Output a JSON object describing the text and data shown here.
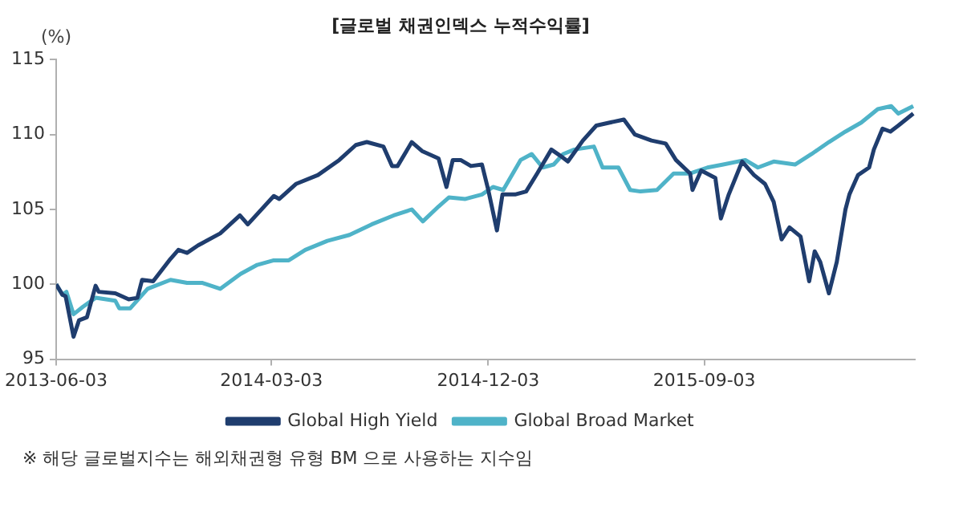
{
  "chart_data": {
    "type": "line",
    "title": "[글로벌 채권인덱스 누적수익률]",
    "ylabel": "(%)",
    "xlim": [
      "2013-06-03",
      "2016-05-27"
    ],
    "xticks": [
      "2013-06-03",
      "2014-03-03",
      "2014-12-03",
      "2015-09-03"
    ],
    "ylim": [
      95,
      115
    ],
    "yticks": [
      95,
      100,
      105,
      110,
      115
    ],
    "grid": false,
    "legend": "bottom",
    "marker": "none",
    "line_style": "solid",
    "annotations": [
      "※ 해당 글로벌지수는 해외채권형 유형 BM 으로 사용하는 지수임"
    ],
    "series": [
      {
        "name": "Global High Yield",
        "color": "#1f3d6e",
        "x": [
          "2013-06-03",
          "2013-06-11",
          "2013-06-15",
          "2013-06-25",
          "2013-07-02",
          "2013-07-12",
          "2013-07-23",
          "2013-07-27",
          "2013-08-17",
          "2013-09-03",
          "2013-09-14",
          "2013-09-20",
          "2013-10-04",
          "2013-10-26",
          "2013-11-05",
          "2013-11-16",
          "2013-11-30",
          "2013-12-28",
          "2014-01-22",
          "2014-02-01",
          "2014-03-06",
          "2014-03-13",
          "2014-04-03",
          "2014-05-01",
          "2014-05-28",
          "2014-06-18",
          "2014-07-02",
          "2014-07-23",
          "2014-08-03",
          "2014-08-10",
          "2014-08-28",
          "2014-09-10",
          "2014-10-01",
          "2014-10-11",
          "2014-10-19",
          "2014-10-29",
          "2014-11-11",
          "2014-11-25",
          "2014-12-03",
          "2014-12-14",
          "2014-12-21",
          "2015-01-06",
          "2015-01-20",
          "2015-02-03",
          "2015-02-21",
          "2015-03-04",
          "2015-03-14",
          "2015-04-02",
          "2015-04-19",
          "2015-05-06",
          "2015-05-24",
          "2015-06-07",
          "2015-06-28",
          "2015-07-16",
          "2015-07-29",
          "2015-08-16",
          "2015-08-19",
          "2015-08-30",
          "2015-09-17",
          "2015-09-24",
          "2015-10-04",
          "2015-10-21",
          "2015-11-05",
          "2015-11-19",
          "2015-11-30",
          "2015-12-10",
          "2015-12-20",
          "2016-01-03",
          "2016-01-14",
          "2016-01-21",
          "2016-01-28",
          "2016-02-08",
          "2016-02-18",
          "2016-02-29",
          "2016-03-05",
          "2016-03-16",
          "2016-03-30",
          "2016-04-05",
          "2016-04-16",
          "2016-04-26",
          "2016-05-06",
          "2016-05-25"
        ],
        "values": [
          100.0,
          99.3,
          99.2,
          96.5,
          97.6,
          97.8,
          99.9,
          99.5,
          99.4,
          99.0,
          99.1,
          100.3,
          100.2,
          101.7,
          102.3,
          102.1,
          102.6,
          103.4,
          104.6,
          104.0,
          105.9,
          105.7,
          106.7,
          107.3,
          108.3,
          109.3,
          109.5,
          109.2,
          107.9,
          107.9,
          109.5,
          108.9,
          108.4,
          106.5,
          108.3,
          108.3,
          107.9,
          108.0,
          106.3,
          103.6,
          106.0,
          106.0,
          106.2,
          107.4,
          109.0,
          108.6,
          108.2,
          109.6,
          110.6,
          110.8,
          111.0,
          110.0,
          109.6,
          109.4,
          108.3,
          107.4,
          106.3,
          107.6,
          107.1,
          104.4,
          106.0,
          108.2,
          107.3,
          106.7,
          105.5,
          103.0,
          103.8,
          103.2,
          100.2,
          102.2,
          101.5,
          99.4,
          101.5,
          105.0,
          106.0,
          107.3,
          107.8,
          109.0,
          110.4,
          110.2,
          110.6,
          111.4
        ]
      },
      {
        "name": "Global Broad Market",
        "color": "#4fb3c8",
        "x": [
          "2013-06-03",
          "2013-06-11",
          "2013-06-16",
          "2013-06-25",
          "2013-07-07",
          "2013-07-23",
          "2013-08-17",
          "2013-08-22",
          "2013-09-05",
          "2013-09-27",
          "2013-10-26",
          "2013-11-16",
          "2013-12-05",
          "2013-12-28",
          "2014-01-23",
          "2014-02-13",
          "2014-03-06",
          "2014-03-25",
          "2014-04-15",
          "2014-05-13",
          "2014-06-10",
          "2014-07-08",
          "2014-08-05",
          "2014-08-28",
          "2014-09-11",
          "2014-10-01",
          "2014-10-14",
          "2014-11-04",
          "2014-11-25",
          "2014-12-09",
          "2014-12-22",
          "2015-01-13",
          "2015-01-27",
          "2015-02-10",
          "2015-02-24",
          "2015-03-08",
          "2015-03-22",
          "2015-04-16",
          "2015-04-27",
          "2015-05-17",
          "2015-06-01",
          "2015-06-14",
          "2015-07-05",
          "2015-07-26",
          "2015-08-16",
          "2015-09-07",
          "2015-09-27",
          "2015-10-25",
          "2015-11-10",
          "2015-11-30",
          "2015-12-27",
          "2016-01-17",
          "2016-02-08",
          "2016-02-29",
          "2016-03-20",
          "2016-04-10",
          "2016-04-27",
          "2016-05-06",
          "2016-05-25"
        ],
        "values": [
          100.0,
          99.3,
          99.5,
          98.0,
          98.5,
          99.1,
          98.9,
          98.4,
          98.4,
          99.7,
          100.3,
          100.1,
          100.1,
          99.7,
          100.7,
          101.3,
          101.6,
          101.6,
          102.3,
          102.9,
          103.3,
          104.0,
          104.6,
          105.0,
          104.2,
          105.2,
          105.8,
          105.7,
          106.0,
          106.5,
          106.3,
          108.3,
          108.7,
          107.8,
          108.0,
          108.7,
          109.0,
          109.2,
          107.8,
          107.8,
          106.3,
          106.2,
          106.3,
          107.4,
          107.4,
          107.8,
          108.0,
          108.3,
          107.8,
          108.2,
          108.0,
          108.7,
          109.5,
          110.2,
          110.8,
          111.7,
          111.9,
          111.4,
          111.9
        ]
      }
    ]
  }
}
